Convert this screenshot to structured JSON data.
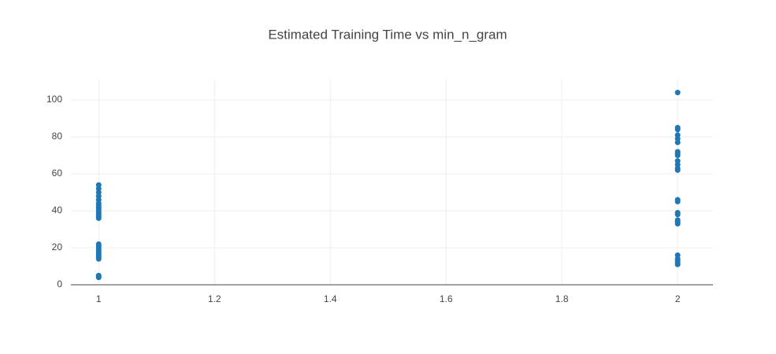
{
  "chart_data": {
    "type": "scatter",
    "title": "Estimated Training Time vs min_n_gram",
    "x": [
      1,
      1,
      1,
      1,
      1,
      1,
      1,
      1,
      1,
      1,
      1,
      1,
      1,
      1,
      1,
      1,
      1,
      1,
      1,
      1,
      1,
      1,
      1,
      1,
      1,
      1,
      2,
      2,
      2,
      2,
      2,
      2,
      2,
      2,
      2,
      2,
      2,
      2,
      2,
      2,
      2,
      2,
      2,
      2,
      2,
      2,
      2,
      2,
      2,
      2,
      2
    ],
    "y": [
      4,
      4.5,
      5,
      14,
      15,
      16,
      17,
      18,
      19,
      20,
      21,
      22,
      36,
      37,
      38,
      39,
      40,
      41,
      42,
      43,
      44,
      46,
      48,
      50,
      52,
      54,
      11,
      12,
      13,
      14,
      16,
      33,
      34,
      35,
      38,
      39,
      45,
      46,
      62,
      63,
      65,
      67,
      70,
      71,
      72,
      77,
      79,
      81,
      84,
      85,
      104
    ],
    "color": "#1f77b4",
    "xlim": [
      0.952,
      2.061
    ],
    "ylim": [
      0,
      111.5
    ],
    "xticks": [
      1,
      1.2,
      1.4,
      1.6,
      1.8,
      2
    ],
    "yticks": [
      0,
      20,
      40,
      60,
      80,
      100
    ],
    "grid": true
  }
}
